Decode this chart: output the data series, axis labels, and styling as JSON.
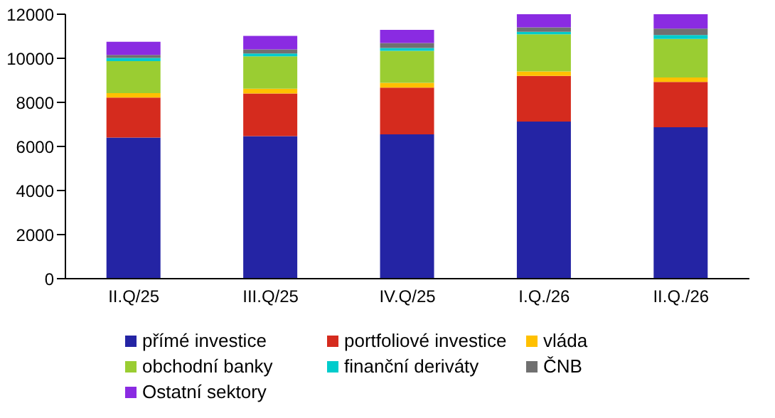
{
  "chart_data": {
    "type": "bar",
    "stacked": true,
    "categories": [
      "II.Q/25",
      "III.Q/25",
      "IV.Q/25",
      "I.Q./26",
      "II.Q./26"
    ],
    "series": [
      {
        "name": "přímé investice",
        "color": "#2424a4",
        "values": [
          6400,
          6470,
          6550,
          7130,
          6870
        ]
      },
      {
        "name": "portfoliové investice",
        "color": "#d52b1e",
        "values": [
          1820,
          1930,
          2120,
          2070,
          2060
        ]
      },
      {
        "name": "vláda",
        "color": "#ffc000",
        "values": [
          200,
          220,
          220,
          200,
          200
        ]
      },
      {
        "name": "obchodní banky",
        "color": "#9acd32",
        "values": [
          1450,
          1470,
          1450,
          1690,
          1750
        ]
      },
      {
        "name": "finanční deriváty",
        "color": "#00cccc",
        "values": [
          150,
          130,
          130,
          110,
          180
        ]
      },
      {
        "name": "ČNB",
        "color": "#707070",
        "values": [
          130,
          180,
          220,
          200,
          290
        ]
      },
      {
        "name": "Ostatní sektory",
        "color": "#8a2be2",
        "values": [
          600,
          620,
          600,
          600,
          650
        ]
      }
    ],
    "ylim": [
      0,
      12000
    ],
    "yticks": [
      0,
      2000,
      4000,
      6000,
      8000,
      10000,
      12000
    ],
    "grid": false,
    "legend": "bottom"
  }
}
